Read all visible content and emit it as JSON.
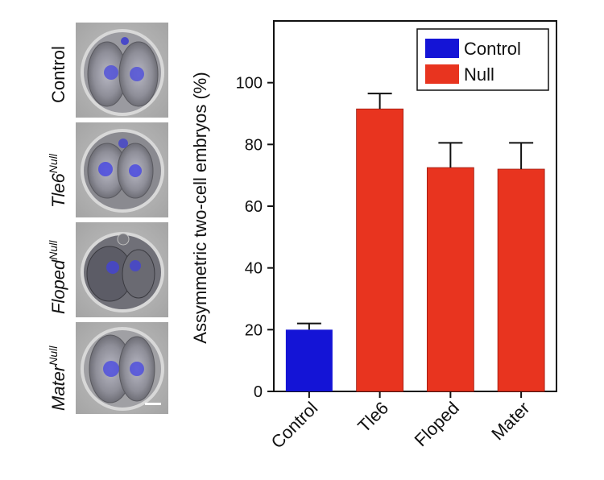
{
  "panels": [
    {
      "label": "Control",
      "sup": ""
    },
    {
      "label": "Tle6",
      "sup": "Null"
    },
    {
      "label": "Floped",
      "sup": "Null"
    },
    {
      "label": "Mater",
      "sup": "Null"
    }
  ],
  "chart_data": {
    "type": "bar",
    "categories": [
      "Control",
      "Tle6",
      "Floped",
      "Mater"
    ],
    "values": [
      20,
      91.5,
      72.5,
      72
    ],
    "errors": [
      2,
      5,
      8,
      8.5
    ],
    "groups": [
      "Control",
      "Null",
      "Null",
      "Null"
    ],
    "title": "",
    "xlabel": "",
    "ylabel": "Assymmetric two-cell embryos (%)",
    "ylim": [
      0,
      120
    ],
    "yticks": [
      0,
      20,
      40,
      60,
      80,
      100
    ],
    "grid": false,
    "legend": {
      "position": "top-right",
      "entries": [
        {
          "label": "Control",
          "color": "#1414d6"
        },
        {
          "label": "Null",
          "color": "#e8341f"
        }
      ]
    },
    "colors": {
      "Control": "#1414d6",
      "Null": "#e8341f"
    }
  }
}
